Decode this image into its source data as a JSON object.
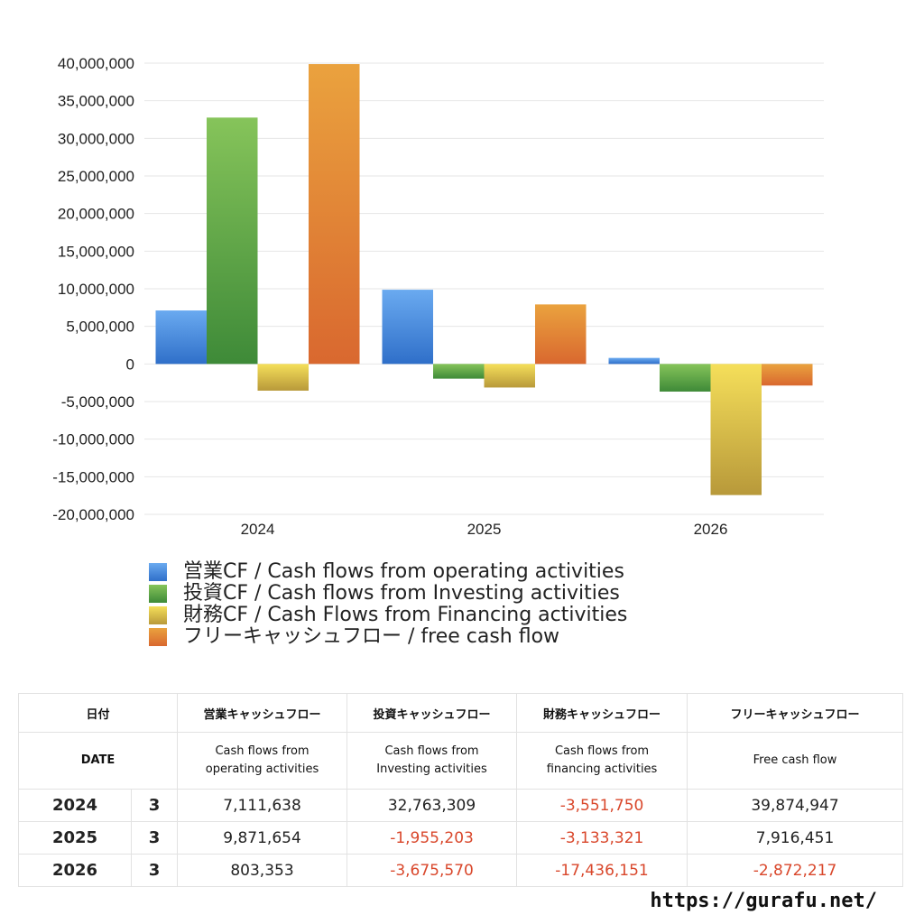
{
  "chart_data": {
    "type": "bar",
    "categories": [
      "2024",
      "2025",
      "2026"
    ],
    "ylim": [
      -20000000,
      40000000
    ],
    "ytick_step": 5000000,
    "grid": true,
    "legend_position": "bottom",
    "series": [
      {
        "name": "営業CF / Cash flows from operating activities",
        "values": [
          7111638,
          9871654,
          803353
        ],
        "color_top": "#6aaaf0",
        "color_bottom": "#2f6fc9"
      },
      {
        "name": "投資CF / Cash flows from Investing activities",
        "values": [
          32763309,
          -1955203,
          -3675570
        ],
        "color_top": "#86c45a",
        "color_bottom": "#3e8a38"
      },
      {
        "name": "財務CF / Cash Flows from Financing activities",
        "values": [
          -3551750,
          -3133321,
          -17436151
        ],
        "color_top": "#f5df5a",
        "color_bottom": "#b8993a"
      },
      {
        "name": "フリーキャッシュフロー / free cash flow",
        "values": [
          39874947,
          7916451,
          -2872217
        ],
        "color_top": "#eaa23e",
        "color_bottom": "#d9682f"
      }
    ]
  },
  "table": {
    "headers_jp": [
      "日付",
      "営業キャッシュフロー",
      "投資キャッシュフロー",
      "財務キャッシュフロー",
      "フリーキャッシュフロー"
    ],
    "headers_en": [
      "DATE",
      "Cash flows from\noperating activities",
      "Cash flows from\nInvesting activities",
      "Cash flows from\nfinancing activities",
      "Free cash flow"
    ],
    "rows": [
      {
        "year": "2024",
        "month": "3",
        "values": [
          "7,111,638",
          "32,763,309",
          "-3,551,750",
          "39,874,947"
        ]
      },
      {
        "year": "2025",
        "month": "3",
        "values": [
          "9,871,654",
          "-1,955,203",
          "-3,133,321",
          "7,916,451"
        ]
      },
      {
        "year": "2026",
        "month": "3",
        "values": [
          "803,353",
          "-3,675,570",
          "-17,436,151",
          "-2,872,217"
        ]
      }
    ]
  },
  "footer": {
    "site_url": "https://gurafu.net/"
  },
  "colors": {
    "negative": "#d9472b",
    "grid": "#e6e6e6"
  }
}
